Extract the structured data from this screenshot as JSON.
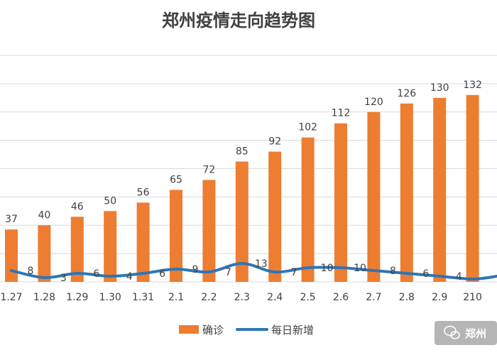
{
  "chart_data": {
    "type": "bar",
    "title": "郑州疫情走向趋势图",
    "categories": [
      "1.27",
      "1.28",
      "1.29",
      "1.30",
      "1.31",
      "2.1",
      "2.2",
      "2.3",
      "2.4",
      "2.5",
      "2.6",
      "2.7",
      "2.8",
      "2.9",
      "210"
    ],
    "series": [
      {
        "name": "确诊",
        "type": "bar",
        "color": "#ED7D31",
        "values": [
          37,
          40,
          46,
          50,
          56,
          65,
          72,
          85,
          92,
          102,
          112,
          120,
          126,
          130,
          132
        ]
      },
      {
        "name": "每日新增",
        "type": "line",
        "color": "#2E75B6",
        "values": [
          8,
          3,
          6,
          4,
          6,
          9,
          7,
          13,
          7,
          10,
          10,
          8,
          6,
          4,
          2
        ]
      }
    ],
    "bar_labels": [
      "37",
      "40",
      "46",
      "50",
      "56",
      "65",
      "72",
      "85",
      "92",
      "102",
      "112",
      "120",
      "126",
      "130",
      "132"
    ],
    "line_labels": [
      "8",
      "3",
      "6",
      "4",
      "6",
      "9",
      "7",
      "13",
      "7",
      "10",
      "10",
      "8",
      "6",
      "4",
      ""
    ],
    "ylim": [
      0,
      160
    ],
    "grid": true,
    "legend_position": "bottom"
  },
  "watermark": {
    "text": "郑州"
  }
}
